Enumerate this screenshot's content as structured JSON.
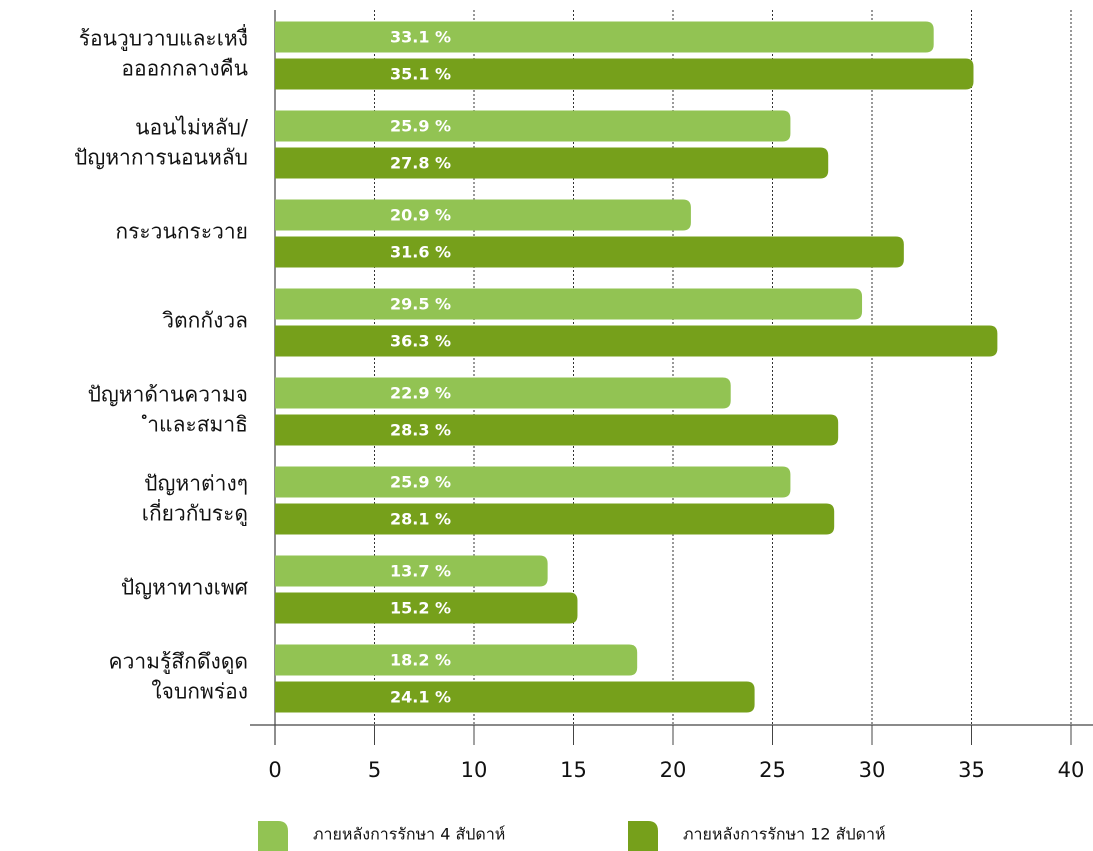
{
  "chart_data": {
    "type": "hbar",
    "categories": [
      "ร้อนวูบวาบและเหงื่\nอออกกลางคืน",
      "นอนไม่หลับ/\nปัญหาการนอนหลับ",
      "กระวนกระวาย",
      "วิตกกังวล",
      "ปัญหาด้านความจ\nำและสมาธิ",
      "ปัญหาต่างๆ\nเกี่ยวกับระดู",
      "ปัญหาทางเพศ",
      "ความรู้สึกดึงดูด\nใจบกพร่อง"
    ],
    "series": [
      {
        "name": "ภายหลังการรักษา 4 สัปดาห์",
        "color": "#92c353",
        "values": [
          33.1,
          25.9,
          20.9,
          29.5,
          22.9,
          25.9,
          13.7,
          18.2
        ],
        "value_labels": [
          "33.1 %",
          "25.9 %",
          "20.9 %",
          "29.5 %",
          "22.9 %",
          "25.9 %",
          "13.7 %",
          "18.2 %"
        ]
      },
      {
        "name": "ภายหลังการรักษา 12 สัปดาห์",
        "color": "#76a01b",
        "values": [
          35.1,
          27.8,
          31.6,
          36.3,
          28.3,
          28.1,
          15.2,
          24.1
        ],
        "value_labels": [
          "35.1 %",
          "27.8 %",
          "31.6 %",
          "36.3 %",
          "28.3 %",
          "28.1 %",
          "15.2 %",
          "24.1 %"
        ]
      }
    ],
    "xlim": [
      0,
      40
    ],
    "xticks": [
      0,
      5,
      10,
      15,
      20,
      25,
      30,
      35,
      40
    ],
    "grid": true,
    "legend": "bottom"
  }
}
